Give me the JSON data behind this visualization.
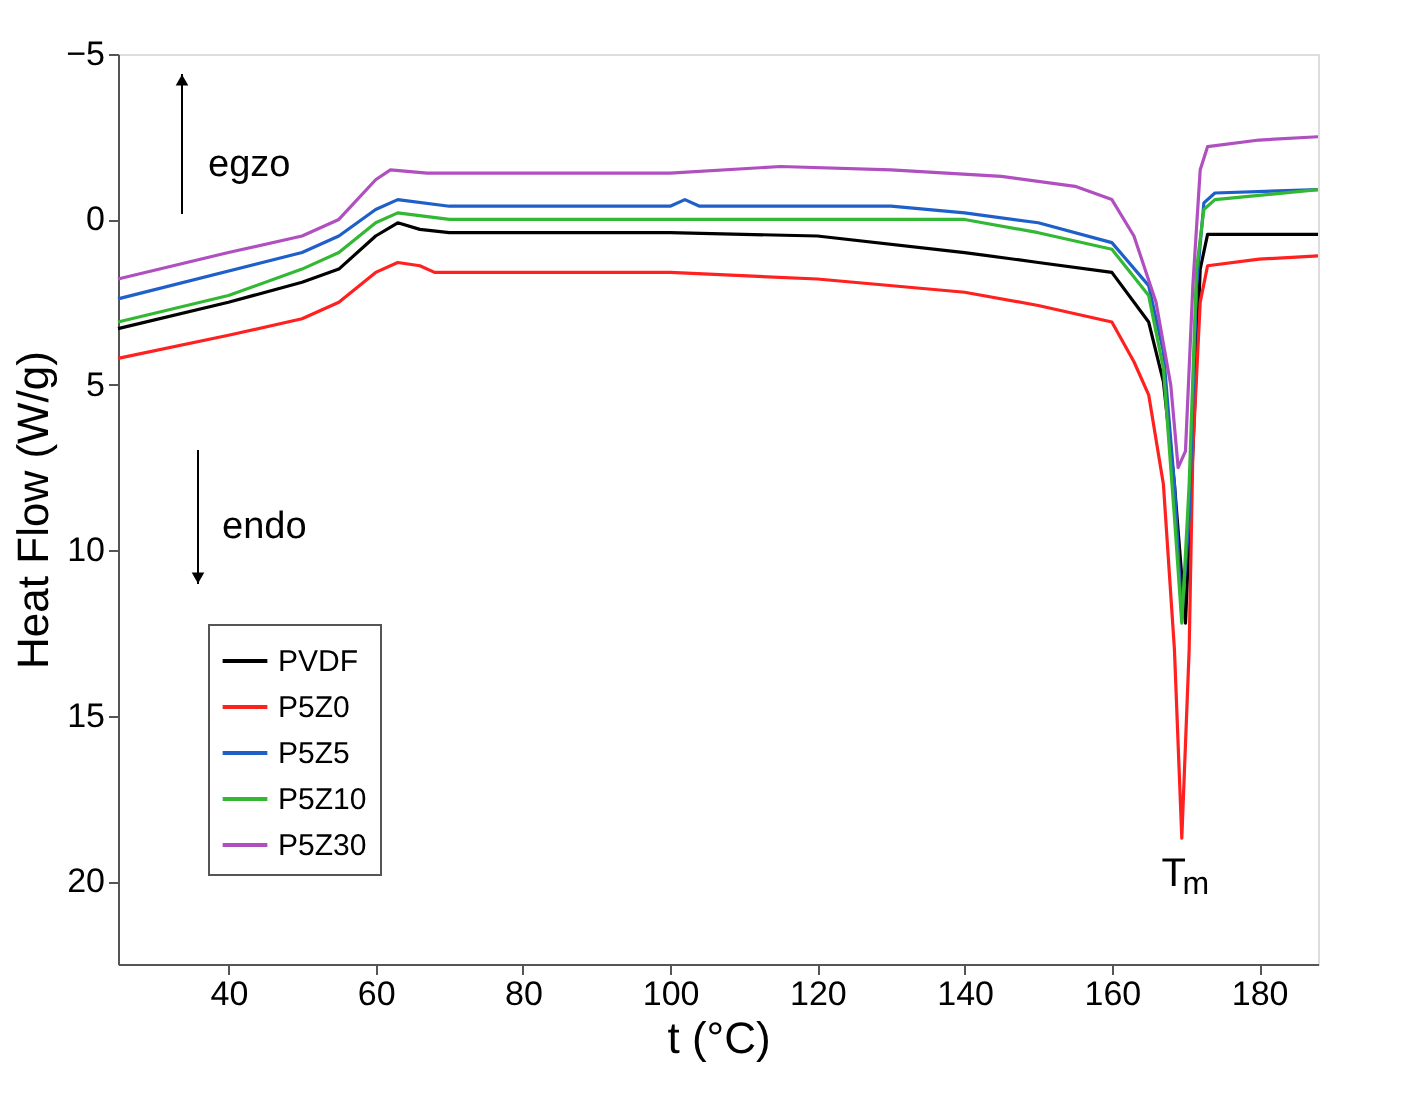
{
  "chart_data": {
    "type": "line",
    "xlabel": "t (°C)",
    "ylabel": "Heat Flow (W/g)",
    "xlim": [
      25,
      188
    ],
    "ylim": [
      22.5,
      -5
    ],
    "xticks": [
      40,
      60,
      80,
      100,
      120,
      140,
      160,
      180
    ],
    "yticks": [
      -5,
      0,
      5,
      10,
      15,
      20
    ],
    "grid": false,
    "legend": "bottom left",
    "marker": "none",
    "line_style": "solid",
    "series": [
      {
        "name": "PVDF",
        "color": "#000000",
        "x": [
          25,
          40,
          50,
          55,
          60,
          63,
          66,
          70,
          100,
          120,
          140,
          150,
          160,
          165,
          167,
          168.5,
          170,
          171,
          172,
          173,
          188
        ],
        "values": [
          3.3,
          2.5,
          1.9,
          1.5,
          0.5,
          0.1,
          0.3,
          0.4,
          0.4,
          0.5,
          1.0,
          1.3,
          1.6,
          3.1,
          4.9,
          8,
          12.2,
          7,
          1.5,
          0.45,
          0.45
        ]
      },
      {
        "name": "P5Z0",
        "color": "#ff2020",
        "x": [
          25,
          40,
          50,
          55,
          60,
          63,
          66,
          68,
          100,
          120,
          140,
          150,
          160,
          163,
          165,
          167,
          168.5,
          169.5,
          170.5,
          171,
          172,
          173,
          180,
          188
        ],
        "values": [
          4.2,
          3.5,
          3.0,
          2.5,
          1.6,
          1.3,
          1.4,
          1.6,
          1.6,
          1.8,
          2.2,
          2.6,
          3.1,
          4.3,
          5.3,
          8,
          13,
          18.7,
          13,
          7,
          2.5,
          1.4,
          1.2,
          1.1
        ]
      },
      {
        "name": "P5Z5",
        "color": "#1f5fc8",
        "x": [
          25,
          50,
          55,
          60,
          63,
          70,
          100,
          102,
          104,
          130,
          140,
          150,
          160,
          165,
          167,
          168.5,
          169.5,
          170.5,
          171.5,
          172.5,
          174,
          188
        ],
        "values": [
          2.4,
          1.0,
          0.5,
          -0.3,
          -0.6,
          -0.4,
          -0.4,
          -0.6,
          -0.4,
          -0.4,
          -0.2,
          0.1,
          0.7,
          2.0,
          4,
          8,
          12,
          9,
          2,
          -0.5,
          -0.8,
          -0.9
        ]
      },
      {
        "name": "P5Z10",
        "color": "#33b833",
        "x": [
          25,
          40,
          50,
          55,
          60,
          63,
          70,
          100,
          140,
          150,
          160,
          165,
          167,
          168.5,
          169.5,
          170.5,
          171.5,
          172.5,
          174,
          188
        ],
        "values": [
          3.1,
          2.3,
          1.5,
          1.0,
          0.1,
          -0.2,
          0.0,
          0.0,
          0.0,
          0.4,
          0.9,
          2.3,
          4.5,
          9,
          12.2,
          8,
          1.5,
          -0.3,
          -0.6,
          -0.9
        ]
      },
      {
        "name": "P5Z30",
        "color": "#b04fc0",
        "x": [
          25,
          40,
          50,
          55,
          60,
          62,
          67,
          100,
          115,
          130,
          145,
          155,
          160,
          163,
          166,
          168,
          169,
          170,
          171,
          172,
          173,
          180,
          188
        ],
        "values": [
          1.8,
          1.0,
          0.5,
          0.0,
          -1.2,
          -1.5,
          -1.4,
          -1.4,
          -1.6,
          -1.5,
          -1.3,
          -1.0,
          -0.6,
          0.5,
          2.5,
          5,
          7.5,
          7,
          2,
          -1.5,
          -2.2,
          -2.4,
          -2.5
        ]
      }
    ],
    "annotations": [
      "egzo",
      "endo",
      {
        "text": "T$_{m}$",
        "x": 169.5,
        "y": 18.7
      }
    ]
  }
}
